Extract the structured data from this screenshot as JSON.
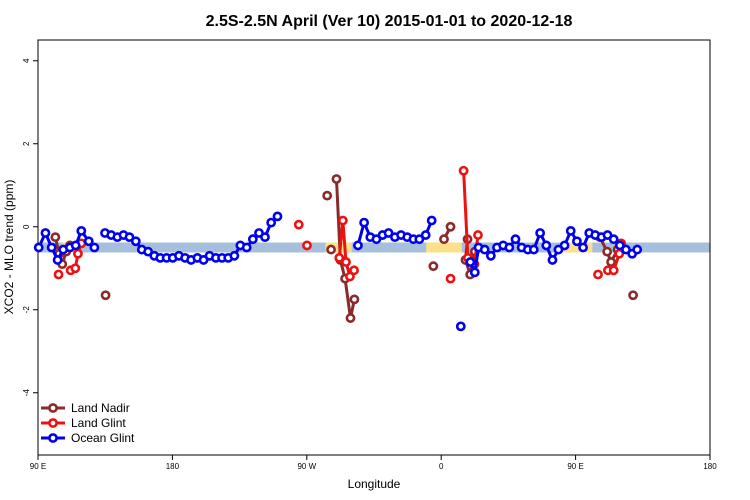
{
  "chart_data": {
    "type": "line",
    "title": "2.5S-2.5N April (Ver 10)   2015-01-01 to 2020-12-18",
    "xlabel": "Longitude",
    "ylabel": "XCO2 - MLO trend (ppm)",
    "xlim": [
      90,
      450
    ],
    "ylim": [
      -5.5,
      4.5
    ],
    "x_ticks": [
      {
        "value": 90,
        "label": "90 E"
      },
      {
        "value": 162,
        "label": "180"
      },
      {
        "value": 234,
        "label": "90 W"
      },
      {
        "value": 306,
        "label": "0"
      },
      {
        "value": 378,
        "label": "90 E"
      },
      {
        "value": 450,
        "label": "180"
      }
    ],
    "y_ticks": [
      {
        "value": -4,
        "label": "-4"
      },
      {
        "value": -2,
        "label": "-2"
      },
      {
        "value": 0,
        "label": "0"
      },
      {
        "value": 2,
        "label": "2"
      },
      {
        "value": 4,
        "label": "4"
      }
    ],
    "band": {
      "y_low": -0.62,
      "y_high": -0.38,
      "color": "#a6bfdc"
    },
    "yellow_bands": [
      {
        "x_low": 103,
        "x_high": 112,
        "color": "#fde08a"
      },
      {
        "x_low": 244,
        "x_high": 258,
        "color": "#fde08a"
      },
      {
        "x_low": 298,
        "x_high": 317,
        "color": "#fde08a"
      },
      {
        "x_low": 370,
        "x_high": 387,
        "color": "#fde08a"
      }
    ],
    "legend_position": "bottom-left",
    "series": [
      {
        "name": "Land Nadir",
        "color": "#8b2a2a",
        "segments": [
          [
            [
              99.3,
              -0.25
            ],
            [
              101.3,
              -0.65
            ],
            [
              103.0,
              -0.9
            ],
            [
              105.1,
              -0.6
            ],
            [
              107.1,
              -0.45
            ]
          ],
          [
            [
              126.2,
              -1.65
            ]
          ],
          [
            [
              244.9,
              0.75
            ]
          ],
          [
            [
              247.0,
              -0.55
            ]
          ],
          [
            [
              249.9,
              1.15
            ],
            [
              252.0,
              -0.8
            ],
            [
              254.5,
              -1.25
            ],
            [
              257.4,
              -2.2
            ],
            [
              259.5,
              -1.75
            ]
          ],
          [
            [
              301.8,
              -0.95
            ]
          ],
          [
            [
              311.0,
              0.0
            ],
            [
              307.5,
              -0.3
            ]
          ],
          [
            [
              320.1,
              -0.3
            ],
            [
              319.0,
              -0.8
            ],
            [
              321.5,
              -1.15
            ],
            [
              324.0,
              -0.6
            ]
          ],
          [
            [
              391.0,
              -0.25
            ],
            [
              394.9,
              -0.6
            ],
            [
              397.0,
              -0.85
            ],
            [
              400.5,
              -0.55
            ],
            [
              402.2,
              -0.45
            ]
          ],
          [
            [
              408.8,
              -1.65
            ]
          ]
        ]
      },
      {
        "name": "Land Glint",
        "color": "#ee1111",
        "segments": [
          [
            [
              101.0,
              -1.15
            ]
          ],
          [
            [
              107.5,
              -1.05
            ],
            [
              110.0,
              -1.0
            ],
            [
              111.4,
              -0.65
            ],
            [
              113.2,
              -0.4
            ]
          ],
          [
            [
              229.7,
              0.05
            ]
          ],
          [
            [
              234.1,
              -0.45
            ]
          ],
          [
            [
              251.4,
              -0.75
            ],
            [
              253.3,
              0.15
            ],
            [
              255.0,
              -0.85
            ],
            [
              257.1,
              -1.2
            ],
            [
              259.3,
              -1.05
            ]
          ],
          [
            [
              311.0,
              -1.25
            ]
          ],
          [
            [
              318.0,
              1.35
            ],
            [
              320.3,
              -0.75
            ],
            [
              323.8,
              -0.9
            ],
            [
              325.7,
              -0.2
            ]
          ],
          [
            [
              390.0,
              -1.15
            ]
          ],
          [
            [
              395.3,
              -1.05
            ],
            [
              398.4,
              -1.05
            ],
            [
              401.4,
              -0.65
            ],
            [
              402.4,
              -0.4
            ]
          ]
        ]
      },
      {
        "name": "Ocean Glint",
        "color": "#0000ee",
        "segments": [
          [
            [
              90.4,
              -0.5
            ],
            [
              94.0,
              -0.15
            ],
            [
              97.3,
              -0.5
            ],
            [
              100.5,
              -0.8
            ],
            [
              103.5,
              -0.55
            ],
            [
              107.1,
              -0.5
            ],
            [
              110.2,
              -0.45
            ],
            [
              113.2,
              -0.1
            ],
            [
              117.2,
              -0.35
            ],
            [
              120.2,
              -0.5
            ]
          ],
          [
            [
              125.9,
              -0.15
            ],
            [
              129.2,
              -0.2
            ],
            [
              132.5,
              -0.25
            ],
            [
              135.8,
              -0.2
            ],
            [
              139.0,
              -0.25
            ],
            [
              142.4,
              -0.35
            ],
            [
              145.6,
              -0.55
            ],
            [
              149.0,
              -0.6
            ],
            [
              152.3,
              -0.7
            ],
            [
              155.5,
              -0.75
            ],
            [
              158.9,
              -0.75
            ],
            [
              162.2,
              -0.75
            ],
            [
              165.5,
              -0.7
            ],
            [
              168.8,
              -0.75
            ],
            [
              172.0,
              -0.8
            ],
            [
              175.4,
              -0.75
            ],
            [
              178.7,
              -0.8
            ],
            [
              181.9,
              -0.7
            ],
            [
              185.3,
              -0.75
            ],
            [
              188.6,
              -0.75
            ],
            [
              191.9,
              -0.75
            ],
            [
              195.2,
              -0.7
            ],
            [
              198.4,
              -0.45
            ],
            [
              201.8,
              -0.5
            ],
            [
              205.1,
              -0.3
            ],
            [
              208.4,
              -0.15
            ],
            [
              211.6,
              -0.25
            ],
            [
              214.9,
              0.1
            ],
            [
              218.3,
              0.25
            ]
          ],
          [
            [
              261.4,
              -0.45
            ],
            [
              264.7,
              0.1
            ],
            [
              268.0,
              -0.25
            ],
            [
              271.3,
              -0.3
            ],
            [
              274.6,
              -0.2
            ],
            [
              277.8,
              -0.15
            ],
            [
              281.2,
              -0.25
            ],
            [
              284.5,
              -0.2
            ],
            [
              287.8,
              -0.25
            ],
            [
              291.1,
              -0.3
            ],
            [
              294.3,
              -0.3
            ],
            [
              297.7,
              -0.2
            ],
            [
              300.9,
              0.15
            ]
          ],
          [
            [
              316.5,
              -2.4
            ]
          ],
          [
            [
              321.6,
              -0.85
            ],
            [
              324.0,
              -1.1
            ],
            [
              326.0,
              -0.5
            ],
            [
              329.3,
              -0.55
            ],
            [
              332.6,
              -0.7
            ],
            [
              335.9,
              -0.5
            ],
            [
              339.2,
              -0.45
            ],
            [
              342.5,
              -0.5
            ],
            [
              345.8,
              -0.3
            ],
            [
              349.1,
              -0.5
            ],
            [
              352.4,
              -0.55
            ],
            [
              355.6,
              -0.55
            ],
            [
              359.0,
              -0.15
            ],
            [
              362.3,
              -0.45
            ],
            [
              365.6,
              -0.8
            ],
            [
              368.8,
              -0.55
            ],
            [
              372.1,
              -0.45
            ],
            [
              375.4,
              -0.1
            ],
            [
              378.7,
              -0.35
            ],
            [
              382.0,
              -0.5
            ],
            [
              385.3,
              -0.15
            ],
            [
              388.5,
              -0.2
            ],
            [
              391.9,
              -0.25
            ],
            [
              395.1,
              -0.2
            ],
            [
              398.4,
              -0.3
            ],
            [
              401.7,
              -0.45
            ],
            [
              405.0,
              -0.55
            ],
            [
              408.3,
              -0.65
            ]
          ],
          [
            [
              411.0,
              -0.55
            ]
          ]
        ]
      }
    ]
  }
}
